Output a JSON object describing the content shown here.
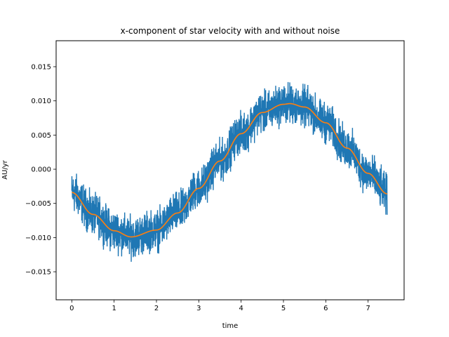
{
  "chart_data": {
    "type": "line",
    "title": "x-component of star velocity with and without noise",
    "xlabel": "time",
    "ylabel": "AU/yr",
    "xlim": [
      -0.37,
      7.85
    ],
    "ylim": [
      -0.0191,
      0.0188
    ],
    "x_ticks": [
      0,
      1,
      2,
      3,
      4,
      5,
      6,
      7
    ],
    "x_tick_labels": [
      "0",
      "1",
      "2",
      "3",
      "4",
      "5",
      "6",
      "7"
    ],
    "y_ticks": [
      -0.015,
      -0.01,
      -0.005,
      0.0,
      0.005,
      0.01,
      0.015
    ],
    "y_tick_labels": [
      "−0.015",
      "−0.010",
      "−0.005",
      "0.000",
      "0.005",
      "0.010",
      "0.015"
    ],
    "grid": false,
    "legend": "none",
    "series": [
      {
        "style": "noisy",
        "color": "#1f77b4",
        "description_of_values": "noisy signal around the clean curve",
        "x": [
          0.0,
          0.5,
          1.0,
          1.4,
          2.0,
          2.5,
          3.0,
          3.5,
          4.0,
          4.5,
          5.0,
          5.15,
          5.5,
          6.0,
          6.5,
          7.0,
          7.45
        ],
        "y_center": [
          -0.0034,
          -0.0066,
          -0.009,
          -0.0099,
          -0.0089,
          -0.0064,
          -0.0028,
          0.0012,
          0.0052,
          0.0083,
          0.0095,
          0.0096,
          0.0091,
          0.0068,
          0.0031,
          -0.0006,
          -0.0036
        ],
        "noise_amplitude": 0.0042
      },
      {
        "style": "clean",
        "color": "#ff7f0e",
        "x": [
          0.0,
          0.5,
          1.0,
          1.4,
          2.0,
          2.5,
          3.0,
          3.5,
          4.0,
          4.5,
          5.0,
          5.15,
          5.5,
          6.0,
          6.5,
          7.0,
          7.45
        ],
        "y": [
          -0.0034,
          -0.0066,
          -0.009,
          -0.0099,
          -0.0089,
          -0.0064,
          -0.0028,
          0.0012,
          0.0052,
          0.0083,
          0.0095,
          0.0096,
          0.0091,
          0.0068,
          0.0031,
          -0.0006,
          -0.0036
        ]
      }
    ]
  }
}
